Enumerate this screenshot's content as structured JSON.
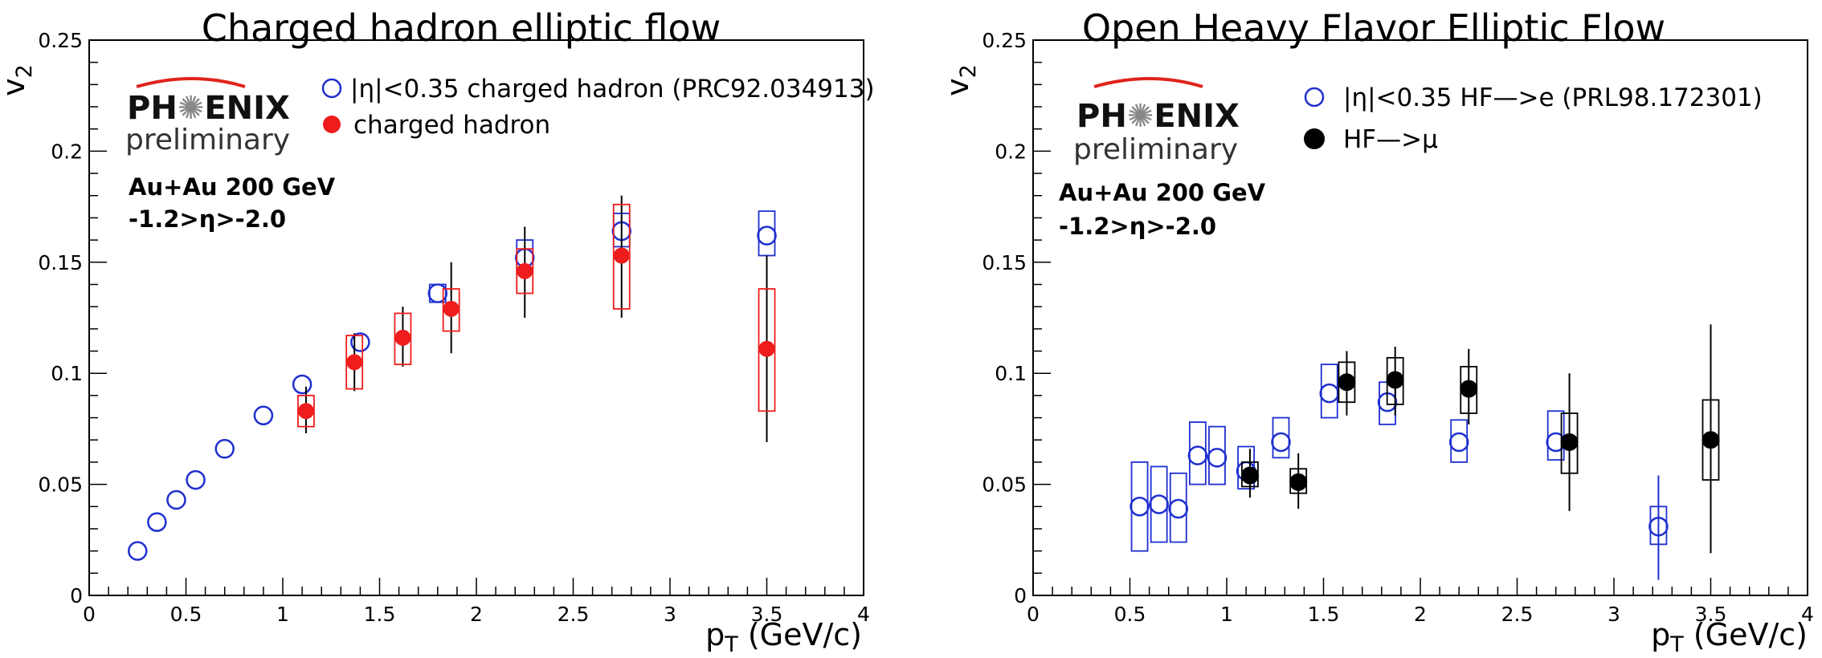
{
  "chart_data": [
    {
      "type": "scatter",
      "title": "Charged hadron elliptic flow",
      "xlabel": "pT (GeV/c)",
      "ylabel": "v2",
      "xlim": [
        0,
        4
      ],
      "ylim": [
        0,
        0.25
      ],
      "xticks": [
        "0",
        "0.5",
        "1",
        "1.5",
        "2",
        "2.5",
        "3",
        "3.5",
        "4"
      ],
      "yticks": [
        "0",
        "0.05",
        "0.1",
        "0.15",
        "0.2",
        "0.25"
      ],
      "logo": "PHENIX",
      "logo_sub": "preliminary",
      "annotations": [
        "Au+Au 200 GeV",
        "-1.2>η>-2.0"
      ],
      "legend": [
        {
          "label": "|η|<0.35 charged hadron (PRC92.034913)",
          "marker": "open-circle",
          "color": "#1f2fd0"
        },
        {
          "label": "charged hadron",
          "marker": "filled-circle",
          "color": "#ee1c1c"
        }
      ],
      "series": [
        {
          "name": "|η|<0.35 charged hadron (PRC92.034913)",
          "marker": "open",
          "color": "#1f2fd0",
          "points": [
            {
              "x": 0.25,
              "y": 0.02
            },
            {
              "x": 0.35,
              "y": 0.033
            },
            {
              "x": 0.45,
              "y": 0.043
            },
            {
              "x": 0.55,
              "y": 0.052
            },
            {
              "x": 0.7,
              "y": 0.066
            },
            {
              "x": 0.9,
              "y": 0.081
            },
            {
              "x": 1.1,
              "y": 0.095
            },
            {
              "x": 1.4,
              "y": 0.114
            },
            {
              "x": 1.8,
              "y": 0.136,
              "syslo": 0.132,
              "syshi": 0.14
            },
            {
              "x": 2.25,
              "y": 0.152,
              "syslo": 0.145,
              "syshi": 0.16
            },
            {
              "x": 2.75,
              "y": 0.164,
              "syslo": 0.157,
              "syshi": 0.172
            },
            {
              "x": 3.5,
              "y": 0.162,
              "syslo": 0.153,
              "syshi": 0.173
            }
          ]
        },
        {
          "name": "charged hadron",
          "marker": "filled",
          "color": "#ee1c1c",
          "points": [
            {
              "x": 1.12,
              "y": 0.083,
              "statlo": 0.073,
              "stathi": 0.094,
              "syslo": 0.076,
              "syshi": 0.09
            },
            {
              "x": 1.37,
              "y": 0.105,
              "statlo": 0.092,
              "stathi": 0.118,
              "syslo": 0.093,
              "syshi": 0.117
            },
            {
              "x": 1.62,
              "y": 0.116,
              "statlo": 0.103,
              "stathi": 0.13,
              "syslo": 0.104,
              "syshi": 0.127
            },
            {
              "x": 1.87,
              "y": 0.129,
              "statlo": 0.109,
              "stathi": 0.15,
              "syslo": 0.119,
              "syshi": 0.138
            },
            {
              "x": 2.25,
              "y": 0.146,
              "statlo": 0.125,
              "stathi": 0.166,
              "syslo": 0.136,
              "syshi": 0.156
            },
            {
              "x": 2.75,
              "y": 0.153,
              "statlo": 0.125,
              "stathi": 0.18,
              "syslo": 0.129,
              "syshi": 0.176
            },
            {
              "x": 3.5,
              "y": 0.111,
              "statlo": 0.069,
              "stathi": 0.153,
              "syslo": 0.083,
              "syshi": 0.138
            }
          ]
        }
      ]
    },
    {
      "type": "scatter",
      "title": "Open Heavy Flavor Elliptic Flow",
      "xlabel": "pT (GeV/c)",
      "ylabel": "v2",
      "xlim": [
        0,
        4
      ],
      "ylim": [
        0,
        0.25
      ],
      "xticks": [
        "0",
        "0.5",
        "1",
        "1.5",
        "2",
        "2.5",
        "3",
        "3.5",
        "4"
      ],
      "yticks": [
        "0",
        "0.05",
        "0.1",
        "0.15",
        "0.2",
        "0.25"
      ],
      "logo": "PHENIX",
      "logo_sub": "preliminary",
      "annotations": [
        "Au+Au 200 GeV",
        "-1.2>η>-2.0"
      ],
      "legend": [
        {
          "label": "|η|<0.35 HF—>e (PRL98.172301)",
          "marker": "open-circle",
          "color": "#1f2fd0"
        },
        {
          "label": "HF—>μ",
          "marker": "filled-circle",
          "color": "#000000"
        }
      ],
      "series": [
        {
          "name": "|η|<0.35 HF—>e (PRL98.172301)",
          "marker": "open",
          "color": "#1f2fd0",
          "points": [
            {
              "x": 0.55,
              "y": 0.04,
              "syslo": 0.02,
              "syshi": 0.06
            },
            {
              "x": 0.65,
              "y": 0.041,
              "syslo": 0.024,
              "syshi": 0.058
            },
            {
              "x": 0.75,
              "y": 0.039,
              "syslo": 0.024,
              "syshi": 0.055
            },
            {
              "x": 0.85,
              "y": 0.063,
              "syslo": 0.05,
              "syshi": 0.078
            },
            {
              "x": 0.95,
              "y": 0.062,
              "syslo": 0.05,
              "syshi": 0.076
            },
            {
              "x": 1.1,
              "y": 0.056,
              "syslo": 0.048,
              "syshi": 0.067
            },
            {
              "x": 1.28,
              "y": 0.069,
              "syslo": 0.062,
              "syshi": 0.08
            },
            {
              "x": 1.53,
              "y": 0.091,
              "syslo": 0.08,
              "syshi": 0.104
            },
            {
              "x": 1.83,
              "y": 0.087,
              "syslo": 0.077,
              "syshi": 0.096
            },
            {
              "x": 2.2,
              "y": 0.069,
              "syslo": 0.06,
              "syshi": 0.079
            },
            {
              "x": 2.7,
              "y": 0.069,
              "syslo": 0.061,
              "syshi": 0.083
            },
            {
              "x": 3.23,
              "y": 0.031,
              "statlo": 0.007,
              "stathi": 0.054,
              "syslo": 0.023,
              "syshi": 0.04
            }
          ]
        },
        {
          "name": "HF—>μ",
          "marker": "filled",
          "color": "#000000",
          "points": [
            {
              "x": 1.12,
              "y": 0.054,
              "statlo": 0.044,
              "stathi": 0.066,
              "syslo": 0.049,
              "syshi": 0.06
            },
            {
              "x": 1.37,
              "y": 0.051,
              "statlo": 0.039,
              "stathi": 0.064,
              "syslo": 0.046,
              "syshi": 0.057
            },
            {
              "x": 1.62,
              "y": 0.096,
              "statlo": 0.081,
              "stathi": 0.11,
              "syslo": 0.087,
              "syshi": 0.105
            },
            {
              "x": 1.87,
              "y": 0.097,
              "statlo": 0.081,
              "stathi": 0.112,
              "syslo": 0.086,
              "syshi": 0.107
            },
            {
              "x": 2.25,
              "y": 0.093,
              "statlo": 0.077,
              "stathi": 0.111,
              "syslo": 0.082,
              "syshi": 0.103
            },
            {
              "x": 2.77,
              "y": 0.069,
              "statlo": 0.038,
              "stathi": 0.1,
              "syslo": 0.055,
              "syshi": 0.082
            },
            {
              "x": 3.5,
              "y": 0.07,
              "statlo": 0.019,
              "stathi": 0.122,
              "syslo": 0.052,
              "syshi": 0.088
            }
          ]
        }
      ]
    }
  ]
}
